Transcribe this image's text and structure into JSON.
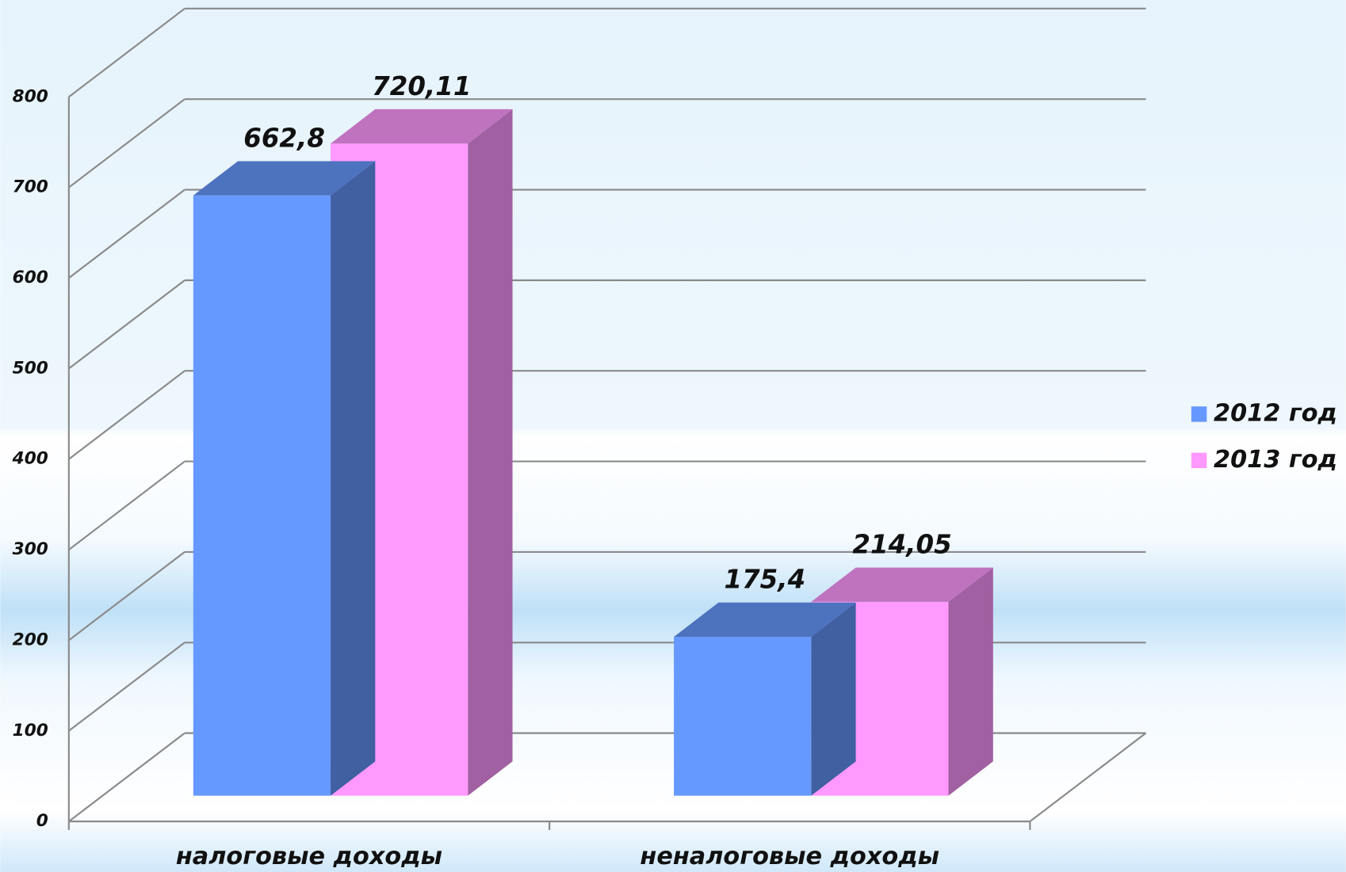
{
  "chart_data": {
    "type": "bar3d",
    "categories": [
      "налоговые доходы",
      "неналоговые доходы"
    ],
    "series": [
      {
        "name": "2012 год",
        "color": "#6699ff",
        "values": [
          662.8,
          175.4
        ],
        "value_labels": [
          "662,8",
          "175,4"
        ]
      },
      {
        "name": "2013 год",
        "color": "#ff99ff",
        "values": [
          720.11,
          214.05
        ],
        "value_labels": [
          "720,11",
          "214,05"
        ]
      }
    ],
    "ylim": [
      0,
      800
    ],
    "yticks": [
      0,
      100,
      200,
      300,
      400,
      500,
      600,
      700,
      800
    ],
    "grid": true,
    "legend": "right"
  }
}
